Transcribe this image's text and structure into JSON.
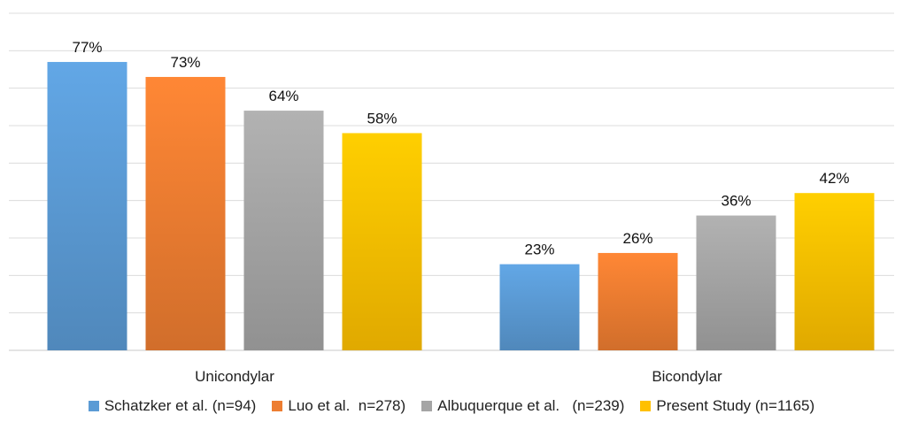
{
  "chart_data": {
    "type": "bar",
    "categories": [
      "Unicondylar",
      "Bicondylar"
    ],
    "series": [
      {
        "name": "Schatzker et al. (n=94)",
        "values": [
          77,
          23
        ],
        "color": "#5B9BD5"
      },
      {
        "name": "Luo et al.  n=278)",
        "values": [
          73,
          26
        ],
        "color": "#ED7D31"
      },
      {
        "name": "Albuquerque et al.   (n=239)",
        "values": [
          64,
          36
        ],
        "color": "#A5A5A5"
      },
      {
        "name": "Present Study (n=1165)",
        "values": [
          58,
          42
        ],
        "color": "#FFC000"
      }
    ],
    "value_suffix": "%",
    "ylim": [
      0,
      90
    ],
    "grid": true,
    "legend": "bottom",
    "title": "",
    "xlabel": "",
    "ylabel": ""
  }
}
